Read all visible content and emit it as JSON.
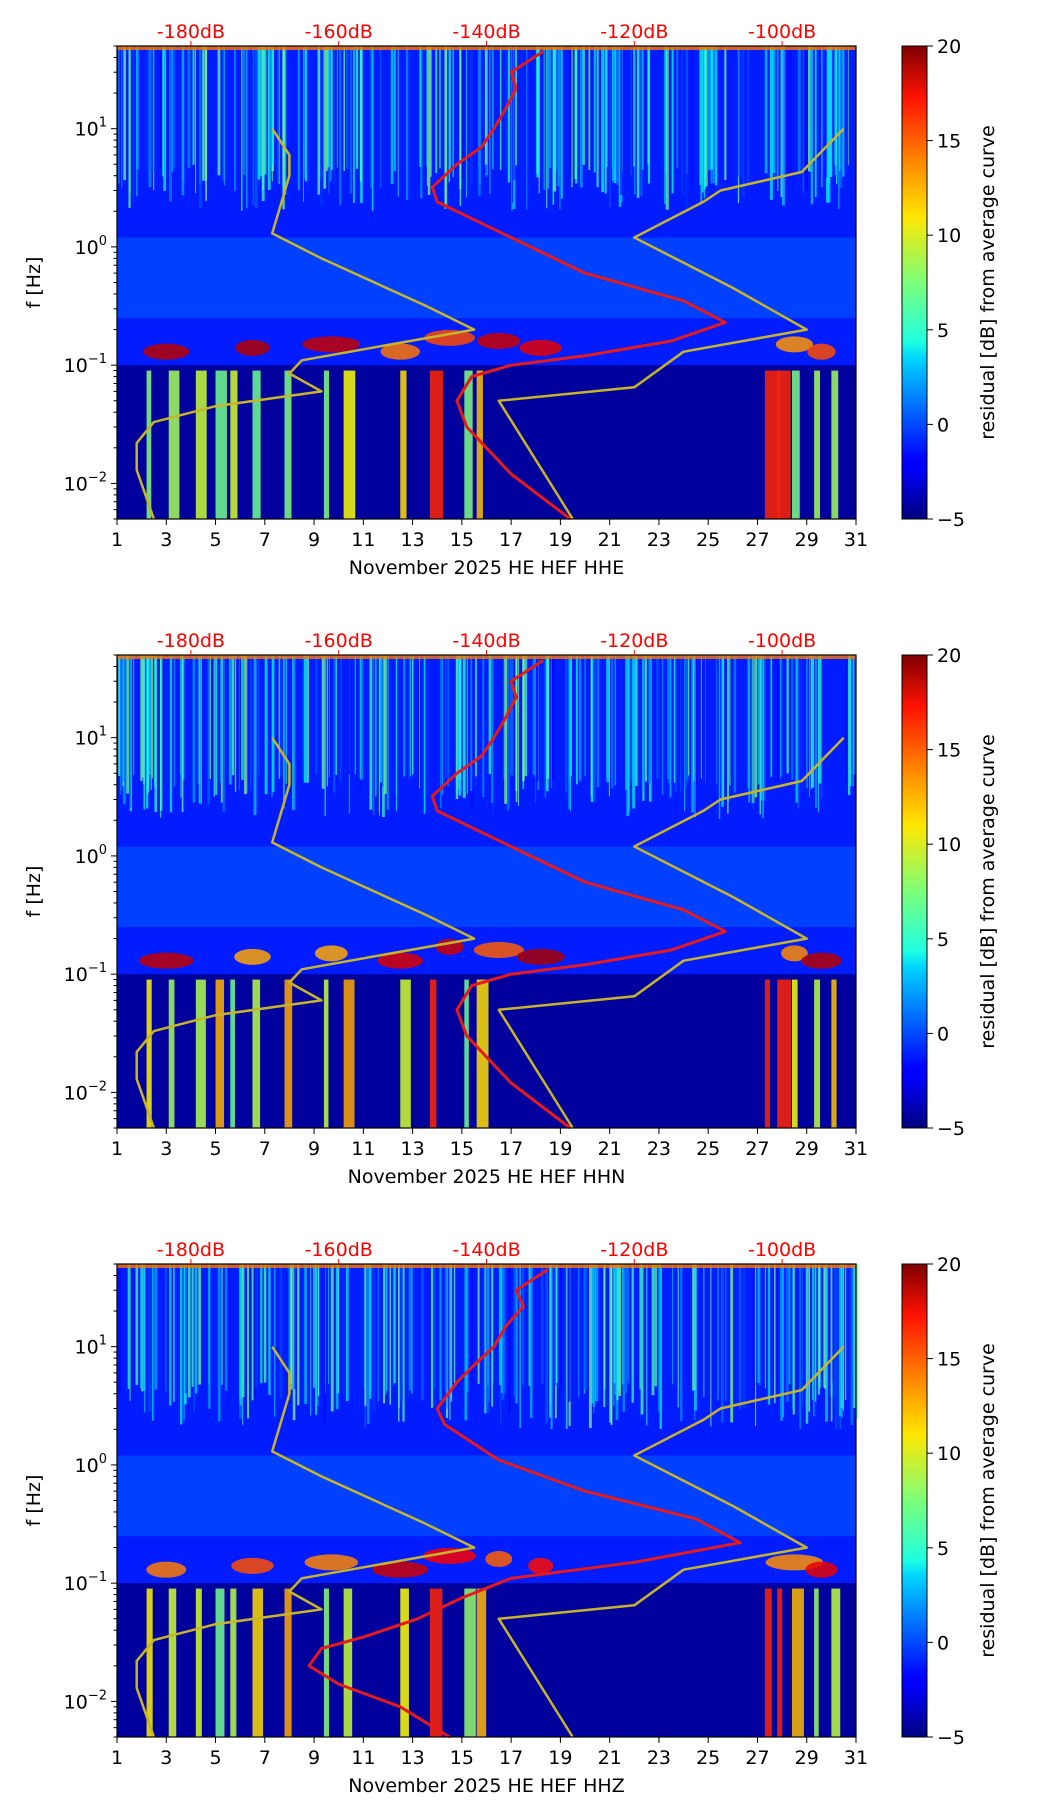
{
  "chart_data": [
    {
      "type": "heatmap",
      "xlabel": "November 2025 HE HEF  HHE",
      "ylabel": "f [Hz]",
      "x_range": [
        1,
        31
      ],
      "x_ticks": [
        1,
        3,
        5,
        7,
        9,
        11,
        13,
        15,
        17,
        19,
        21,
        23,
        25,
        27,
        29,
        31
      ],
      "y_range_hz": [
        0.005,
        50
      ],
      "y_ticks": [
        {
          "value": 10,
          "mantissa": "10",
          "exp": "1"
        },
        {
          "value": 1,
          "mantissa": "10",
          "exp": "0"
        },
        {
          "value": 0.1,
          "mantissa": "10",
          "exp": "−1"
        },
        {
          "value": 0.01,
          "mantissa": "10",
          "exp": "−2"
        }
      ],
      "top_axis_labels": [
        "-180dB",
        "-160dB",
        "-140dB",
        "-120dB",
        "-100dB"
      ],
      "top_axis_positions_day": [
        4,
        10,
        16,
        22,
        28
      ],
      "colorbar": {
        "label": "residual [dB] from average curve",
        "min": -5,
        "max": 20,
        "ticks": [
          "20",
          "15",
          "10",
          "5",
          "0",
          "−5"
        ]
      },
      "series": [
        {
          "name": "average PSD curve",
          "color": "#e41a1c",
          "points": [
            [
              19.4,
              0.005
            ],
            [
              17,
              0.012
            ],
            [
              15.2,
              0.03
            ],
            [
              14.8,
              0.05
            ],
            [
              15.4,
              0.08
            ],
            [
              17,
              0.1
            ],
            [
              20,
              0.12
            ],
            [
              23.5,
              0.16
            ],
            [
              25.7,
              0.23
            ],
            [
              24,
              0.35
            ],
            [
              20,
              0.6
            ],
            [
              17,
              1.2
            ],
            [
              14,
              2.4
            ],
            [
              13.8,
              3.2
            ],
            [
              14.8,
              5
            ],
            [
              15.8,
              7
            ],
            [
              16.3,
              10
            ],
            [
              16.8,
              15
            ],
            [
              17.2,
              22
            ],
            [
              17,
              30
            ],
            [
              18.3,
              45
            ]
          ]
        },
        {
          "name": "noise model curve",
          "color": "#c8b42a",
          "points": [
            [
              2.5,
              0.005
            ],
            [
              1.8,
              0.013
            ],
            [
              1.8,
              0.022
            ],
            [
              2.5,
              0.033
            ],
            [
              5,
              0.045
            ],
            [
              9.3,
              0.06
            ],
            [
              8,
              0.085
            ],
            [
              8.5,
              0.11
            ],
            [
              15.5,
              0.2
            ],
            [
              13.5,
              0.32
            ],
            [
              9.3,
              0.8
            ],
            [
              7.3,
              1.3
            ],
            [
              8,
              4
            ],
            [
              8,
              6
            ],
            [
              7.3,
              10
            ]
          ]
        },
        {
          "name": "noise model curve 2",
          "color": "#c8b42a",
          "points": [
            [
              19.5,
              0.005
            ],
            [
              16.5,
              0.05
            ],
            [
              22,
              0.065
            ],
            [
              24,
              0.13
            ],
            [
              29,
              0.2
            ],
            [
              26,
              0.45
            ],
            [
              22,
              1.2
            ],
            [
              24.8,
              2.4
            ],
            [
              25.5,
              3
            ],
            [
              28.8,
              4.3
            ],
            [
              30.5,
              10
            ]
          ]
        }
      ]
    },
    {
      "type": "heatmap",
      "xlabel": "November 2025 HE HEF  HHN",
      "ylabel": "f [Hz]",
      "x_range": [
        1,
        31
      ],
      "x_ticks": [
        1,
        3,
        5,
        7,
        9,
        11,
        13,
        15,
        17,
        19,
        21,
        23,
        25,
        27,
        29,
        31
      ],
      "y_range_hz": [
        0.005,
        50
      ],
      "y_ticks": [
        {
          "value": 10,
          "mantissa": "10",
          "exp": "1"
        },
        {
          "value": 1,
          "mantissa": "10",
          "exp": "0"
        },
        {
          "value": 0.1,
          "mantissa": "10",
          "exp": "−1"
        },
        {
          "value": 0.01,
          "mantissa": "10",
          "exp": "−2"
        }
      ],
      "top_axis_labels": [
        "-180dB",
        "-160dB",
        "-140dB",
        "-120dB",
        "-100dB"
      ],
      "top_axis_positions_day": [
        4,
        10,
        16,
        22,
        28
      ],
      "colorbar": {
        "label": "residual [dB] from average curve",
        "min": -5,
        "max": 20,
        "ticks": [
          "20",
          "15",
          "10",
          "5",
          "0",
          "−5"
        ]
      },
      "series": [
        {
          "name": "average PSD curve",
          "color": "#e41a1c",
          "points": [
            [
              19.4,
              0.005
            ],
            [
              17,
              0.012
            ],
            [
              15.2,
              0.03
            ],
            [
              14.8,
              0.05
            ],
            [
              15.4,
              0.08
            ],
            [
              17,
              0.1
            ],
            [
              20,
              0.12
            ],
            [
              23.5,
              0.16
            ],
            [
              25.7,
              0.23
            ],
            [
              24,
              0.35
            ],
            [
              20,
              0.6
            ],
            [
              17,
              1.2
            ],
            [
              14,
              2.4
            ],
            [
              13.8,
              3.2
            ],
            [
              14.8,
              5
            ],
            [
              15.8,
              7
            ],
            [
              16.3,
              10
            ],
            [
              16.8,
              15
            ],
            [
              17.2,
              22
            ],
            [
              17,
              30
            ],
            [
              18.3,
              45
            ]
          ]
        },
        {
          "name": "noise model curve",
          "color": "#c8b42a",
          "points": [
            [
              2.5,
              0.005
            ],
            [
              1.8,
              0.013
            ],
            [
              1.8,
              0.022
            ],
            [
              2.5,
              0.033
            ],
            [
              5,
              0.045
            ],
            [
              9.3,
              0.06
            ],
            [
              8,
              0.085
            ],
            [
              8.5,
              0.11
            ],
            [
              15.5,
              0.2
            ],
            [
              13.5,
              0.32
            ],
            [
              9.3,
              0.8
            ],
            [
              7.3,
              1.3
            ],
            [
              8,
              4
            ],
            [
              8,
              6
            ],
            [
              7.3,
              10
            ]
          ]
        },
        {
          "name": "noise model curve 2",
          "color": "#c8b42a",
          "points": [
            [
              19.5,
              0.005
            ],
            [
              16.5,
              0.05
            ],
            [
              22,
              0.065
            ],
            [
              24,
              0.13
            ],
            [
              29,
              0.2
            ],
            [
              26,
              0.45
            ],
            [
              22,
              1.2
            ],
            [
              24.8,
              2.4
            ],
            [
              25.5,
              3
            ],
            [
              28.8,
              4.3
            ],
            [
              30.5,
              10
            ]
          ]
        }
      ]
    },
    {
      "type": "heatmap",
      "xlabel": "November 2025 HE HEF  HHZ",
      "ylabel": "f [Hz]",
      "x_range": [
        1,
        31
      ],
      "x_ticks": [
        1,
        3,
        5,
        7,
        9,
        11,
        13,
        15,
        17,
        19,
        21,
        23,
        25,
        27,
        29,
        31
      ],
      "y_range_hz": [
        0.005,
        50
      ],
      "y_ticks": [
        {
          "value": 10,
          "mantissa": "10",
          "exp": "1"
        },
        {
          "value": 1,
          "mantissa": "10",
          "exp": "0"
        },
        {
          "value": 0.1,
          "mantissa": "10",
          "exp": "−1"
        },
        {
          "value": 0.01,
          "mantissa": "10",
          "exp": "−2"
        }
      ],
      "top_axis_labels": [
        "-180dB",
        "-160dB",
        "-140dB",
        "-120dB",
        "-100dB"
      ],
      "top_axis_positions_day": [
        4,
        10,
        16,
        22,
        28
      ],
      "colorbar": {
        "label": "residual [dB] from average curve",
        "min": -5,
        "max": 20,
        "ticks": [
          "20",
          "15",
          "10",
          "5",
          "0",
          "−5"
        ]
      },
      "series": [
        {
          "name": "average PSD curve",
          "color": "#e41a1c",
          "points": [
            [
              14.5,
              0.005
            ],
            [
              12.5,
              0.009
            ],
            [
              10,
              0.014
            ],
            [
              8.8,
              0.02
            ],
            [
              9.3,
              0.028
            ],
            [
              11,
              0.035
            ],
            [
              13.2,
              0.05
            ],
            [
              15,
              0.075
            ],
            [
              17,
              0.11
            ],
            [
              22,
              0.15
            ],
            [
              26.3,
              0.22
            ],
            [
              24.5,
              0.35
            ],
            [
              20,
              0.6
            ],
            [
              16.5,
              1.1
            ],
            [
              14.3,
              2.2
            ],
            [
              14,
              3
            ],
            [
              14.8,
              5
            ],
            [
              15.5,
              7
            ],
            [
              16.3,
              10
            ],
            [
              16.8,
              15
            ],
            [
              17.5,
              22
            ],
            [
              17.2,
              30
            ],
            [
              18.5,
              45
            ]
          ]
        },
        {
          "name": "noise model curve",
          "color": "#c8b42a",
          "points": [
            [
              2.5,
              0.005
            ],
            [
              1.8,
              0.013
            ],
            [
              1.8,
              0.022
            ],
            [
              2.5,
              0.033
            ],
            [
              5,
              0.045
            ],
            [
              9.3,
              0.06
            ],
            [
              8,
              0.085
            ],
            [
              8.5,
              0.11
            ],
            [
              15.5,
              0.2
            ],
            [
              13.5,
              0.32
            ],
            [
              9.3,
              0.8
            ],
            [
              7.3,
              1.3
            ],
            [
              8,
              4
            ],
            [
              8,
              6
            ],
            [
              7.3,
              10
            ]
          ]
        },
        {
          "name": "noise model curve 2",
          "color": "#c8b42a",
          "points": [
            [
              19.5,
              0.005
            ],
            [
              16.5,
              0.05
            ],
            [
              22,
              0.065
            ],
            [
              24,
              0.13
            ],
            [
              29,
              0.2
            ],
            [
              26,
              0.45
            ],
            [
              22,
              1.2
            ],
            [
              24.8,
              2.4
            ],
            [
              25.5,
              3
            ],
            [
              28.8,
              4.3
            ],
            [
              30.5,
              10
            ]
          ]
        }
      ]
    }
  ],
  "colors": {
    "db_label": "#ff0000",
    "background": "#ffffff"
  }
}
